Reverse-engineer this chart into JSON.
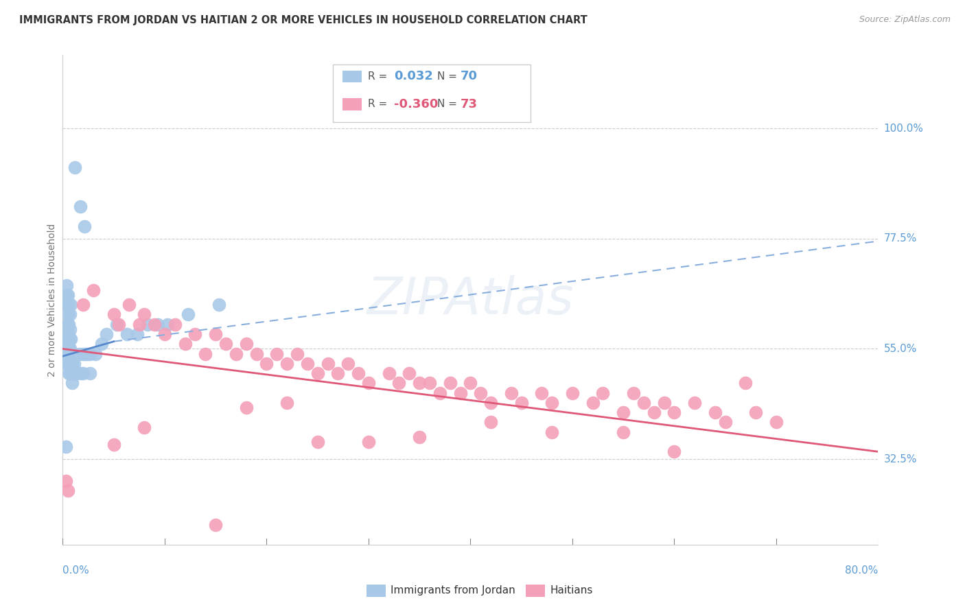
{
  "title": "IMMIGRANTS FROM JORDAN VS HAITIAN 2 OR MORE VEHICLES IN HOUSEHOLD CORRELATION CHART",
  "source": "Source: ZipAtlas.com",
  "ylabel": "2 or more Vehicles in Household",
  "ytick_vals": [
    32.5,
    55.0,
    77.5,
    100.0
  ],
  "ytick_labels": [
    "32.5%",
    "55.0%",
    "77.5%",
    "100.0%"
  ],
  "xlim": [
    0,
    80
  ],
  "ylim": [
    15,
    115
  ],
  "legend_jordan_R": "0.032",
  "legend_jordan_N": "70",
  "legend_haitian_R": "-0.360",
  "legend_haitian_N": "73",
  "legend_label_jordan": "Immigrants from Jordan",
  "legend_label_haitian": "Haitians",
  "jordan_dot_color": "#a8c8e8",
  "haitian_dot_color": "#f4a0b8",
  "jordan_line_color": "#5588cc",
  "haitian_line_color": "#e05878",
  "jordan_line_dashed_color": "#88aedd",
  "title_color": "#333333",
  "axis_label_color": "#5b9bd5",
  "ylabel_color": "#777777",
  "grid_color": "#cccccc",
  "source_color": "#999999",
  "background": "#ffffff",
  "jordan_points_x": [
    0.3,
    1.2,
    1.7,
    2.1,
    0.8,
    0.4,
    0.4,
    0.5,
    0.4,
    0.5,
    0.6,
    0.5,
    0.7,
    0.4,
    0.4,
    0.5,
    0.5,
    0.6,
    0.5,
    0.7,
    0.6,
    0.4,
    0.4,
    0.4,
    0.5,
    0.5,
    0.5,
    0.6,
    0.6,
    0.7,
    0.7,
    0.8,
    0.4,
    0.5,
    0.5,
    0.5,
    0.5,
    0.6,
    0.6,
    0.6,
    0.6,
    0.6,
    0.7,
    0.8,
    0.8,
    0.9,
    0.9,
    0.9,
    1.1,
    1.1,
    1.3,
    1.6,
    1.7,
    2.0,
    2.0,
    2.2,
    2.4,
    2.7,
    2.7,
    3.2,
    3.8,
    4.3,
    5.3,
    6.3,
    7.3,
    8.3,
    9.3,
    10.3,
    12.3,
    15.3
  ],
  "jordan_points_y": [
    35.0,
    92.0,
    84.0,
    80.0,
    64.0,
    68.0,
    66.0,
    66.0,
    64.0,
    64.0,
    64.0,
    62.0,
    62.0,
    60.0,
    58.0,
    60.0,
    58.0,
    60.0,
    58.0,
    59.0,
    57.0,
    57.0,
    56.0,
    55.0,
    57.0,
    55.0,
    54.0,
    57.0,
    55.0,
    57.0,
    55.0,
    57.0,
    52.0,
    54.0,
    54.0,
    52.0,
    52.0,
    54.0,
    54.0,
    52.0,
    52.0,
    50.0,
    50.0,
    52.0,
    50.0,
    52.0,
    50.0,
    48.0,
    52.0,
    50.0,
    50.0,
    54.0,
    50.0,
    54.0,
    50.0,
    54.0,
    54.0,
    54.0,
    50.0,
    54.0,
    56.0,
    58.0,
    60.0,
    58.0,
    58.0,
    60.0,
    60.0,
    60.0,
    62.0,
    64.0
  ],
  "haitian_points_x": [
    0.3,
    0.5,
    2.0,
    3.0,
    5.0,
    5.5,
    6.5,
    7.5,
    8.0,
    9.0,
    10.0,
    11.0,
    12.0,
    13.0,
    14.0,
    15.0,
    16.0,
    17.0,
    18.0,
    19.0,
    20.0,
    21.0,
    22.0,
    23.0,
    24.0,
    25.0,
    26.0,
    27.0,
    28.0,
    29.0,
    30.0,
    32.0,
    33.0,
    34.0,
    35.0,
    36.0,
    37.0,
    38.0,
    39.0,
    40.0,
    41.0,
    42.0,
    44.0,
    45.0,
    47.0,
    48.0,
    50.0,
    52.0,
    53.0,
    55.0,
    56.0,
    57.0,
    58.0,
    59.0,
    60.0,
    62.0,
    64.0,
    65.0,
    67.0,
    68.0,
    70.0,
    55.0,
    42.0,
    30.0,
    22.0,
    15.0,
    48.0,
    35.0,
    25.0,
    18.0,
    8.0,
    60.0,
    5.0
  ],
  "haitian_points_y": [
    28.0,
    26.0,
    64.0,
    67.0,
    62.0,
    60.0,
    64.0,
    60.0,
    62.0,
    60.0,
    58.0,
    60.0,
    56.0,
    58.0,
    54.0,
    58.0,
    56.0,
    54.0,
    56.0,
    54.0,
    52.0,
    54.0,
    52.0,
    54.0,
    52.0,
    50.0,
    52.0,
    50.0,
    52.0,
    50.0,
    48.0,
    50.0,
    48.0,
    50.0,
    48.0,
    48.0,
    46.0,
    48.0,
    46.0,
    48.0,
    46.0,
    44.0,
    46.0,
    44.0,
    46.0,
    44.0,
    46.0,
    44.0,
    46.0,
    42.0,
    46.0,
    44.0,
    42.0,
    44.0,
    42.0,
    44.0,
    42.0,
    40.0,
    48.0,
    42.0,
    40.0,
    38.0,
    40.0,
    36.0,
    44.0,
    19.0,
    38.0,
    37.0,
    36.0,
    43.0,
    39.0,
    34.0,
    35.5
  ],
  "jordan_solid_line": [
    [
      0,
      5.0
    ],
    [
      53.5,
      56.5
    ]
  ],
  "jordan_dashed_line": [
    [
      5.0,
      80
    ],
    [
      56.5,
      77.0
    ]
  ],
  "haitian_line": [
    [
      0,
      80
    ],
    [
      55.0,
      34.0
    ]
  ]
}
